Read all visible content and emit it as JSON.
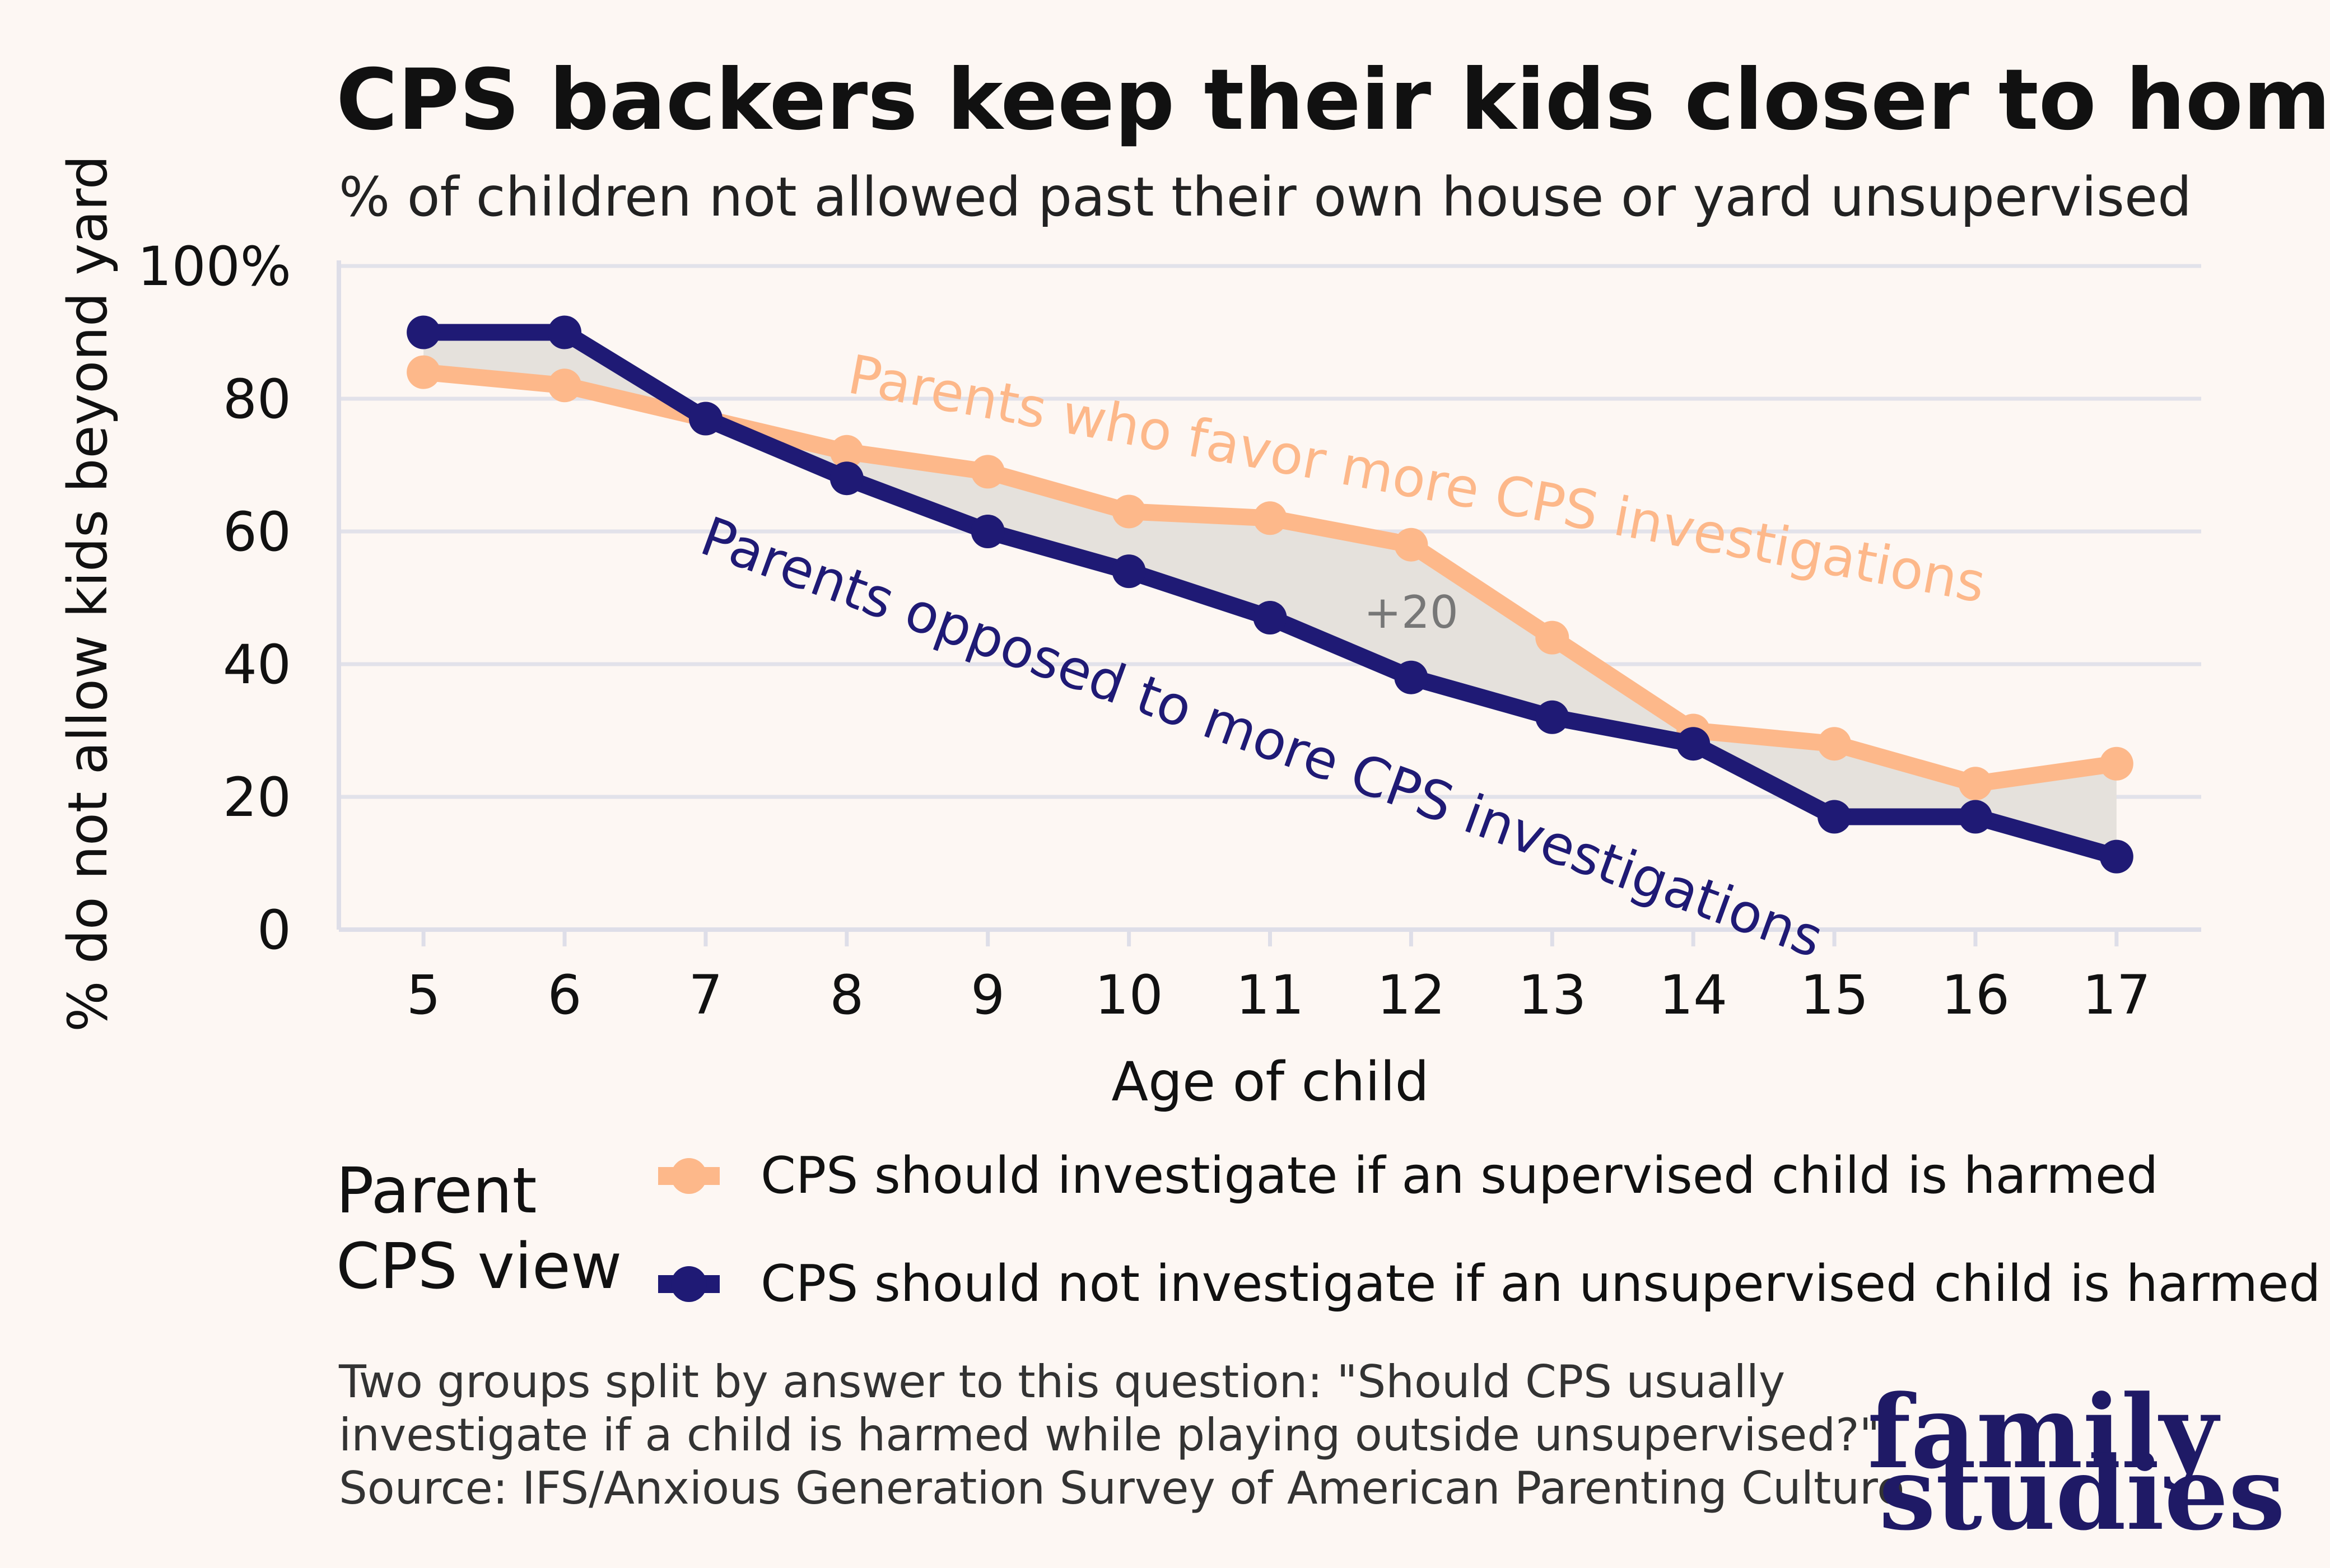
{
  "title": "CPS backers keep their kids closer to home",
  "subtitle": "% of children not allowed past their own house or yard unsupervised",
  "chart_data": {
    "type": "line",
    "xlabel": "Age of child",
    "ylabel": "% do not allow kids beyond yard",
    "x": [
      5,
      6,
      7,
      8,
      9,
      10,
      11,
      12,
      13,
      14,
      15,
      16,
      17
    ],
    "xlim": [
      4.4,
      17.6
    ],
    "ylim": [
      0,
      100
    ],
    "yticks": [
      0,
      20,
      40,
      60,
      80,
      100
    ],
    "ytick_labels": [
      "0",
      "20",
      "40",
      "60",
      "80",
      "100%"
    ],
    "grid": true,
    "series": [
      {
        "name": "CPS should investigate if an supervised child is harmed",
        "color": "#fdb88a",
        "values": [
          84,
          82,
          77,
          72,
          69,
          63,
          62,
          58,
          44,
          30,
          28,
          22,
          25
        ]
      },
      {
        "name": "CPS should not investigate if an unsupervised child is harmed",
        "color": "#1f1a75",
        "values": [
          90,
          90,
          77,
          68,
          60,
          54,
          47,
          38,
          32,
          28,
          17,
          17,
          11
        ]
      }
    ],
    "annotations": [
      {
        "text": "Parents who favor more CPS investigations",
        "series": 0
      },
      {
        "text": "Parents opposed to more CPS investigations",
        "series": 1
      },
      {
        "text": "+20",
        "x": 12
      }
    ],
    "legend_title_lines": [
      "Parent",
      "CPS view"
    ],
    "legend_position": "bottom"
  },
  "footnote_lines": [
    "Two groups split by answer to this question: \"Should CPS usually",
    "investigate if a child is harmed while playing outside unsupervised?\"",
    "Source: IFS/Anxious Generation Survey of American Parenting Culture."
  ],
  "brand_lines": [
    "family",
    "studies"
  ]
}
